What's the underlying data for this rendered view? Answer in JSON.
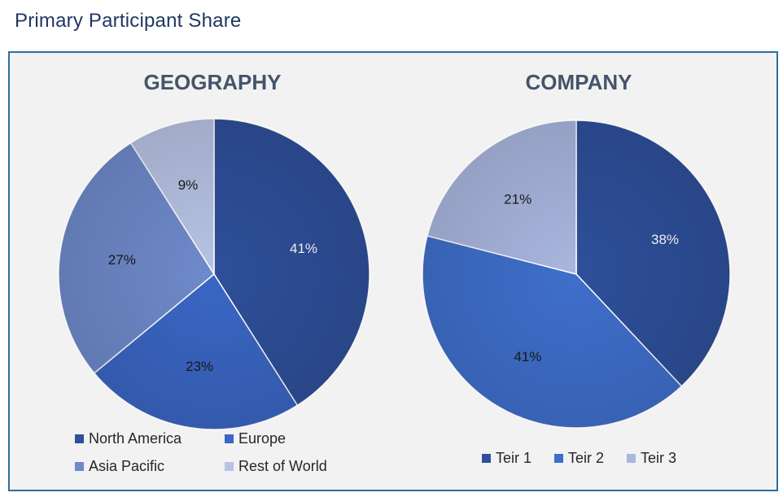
{
  "page": {
    "title": "Primary Participant Share"
  },
  "chart_data": [
    {
      "type": "pie",
      "title": "GEOGRAPHY",
      "categories": [
        "North America",
        "Europe",
        "Asia Pacific",
        "Rest of World"
      ],
      "values": [
        41,
        23,
        27,
        9
      ],
      "labels": [
        "41%",
        "23%",
        "27%",
        "9%"
      ],
      "colors": [
        "#2e4f9a",
        "#3a66c4",
        "#6f8acb",
        "#b8c3e4"
      ],
      "label_colors": [
        "#ffffff",
        "#1a1a1a",
        "#1a1a1a",
        "#1a1a1a"
      ],
      "start_angle_deg": 0,
      "direction": "clockwise",
      "legend_position": "bottom"
    },
    {
      "type": "pie",
      "title": "COMPANY",
      "categories": [
        "Teir 1",
        "Teir 2",
        "Teir 3"
      ],
      "values": [
        38,
        41,
        21
      ],
      "labels": [
        "38%",
        "41%",
        "21%"
      ],
      "colors": [
        "#2e4f9a",
        "#3f6fcc",
        "#a9b6df"
      ],
      "label_colors": [
        "#ffffff",
        "#1a1a1a",
        "#1a1a1a"
      ],
      "start_angle_deg": 0,
      "direction": "clockwise",
      "legend_position": "bottom"
    }
  ]
}
